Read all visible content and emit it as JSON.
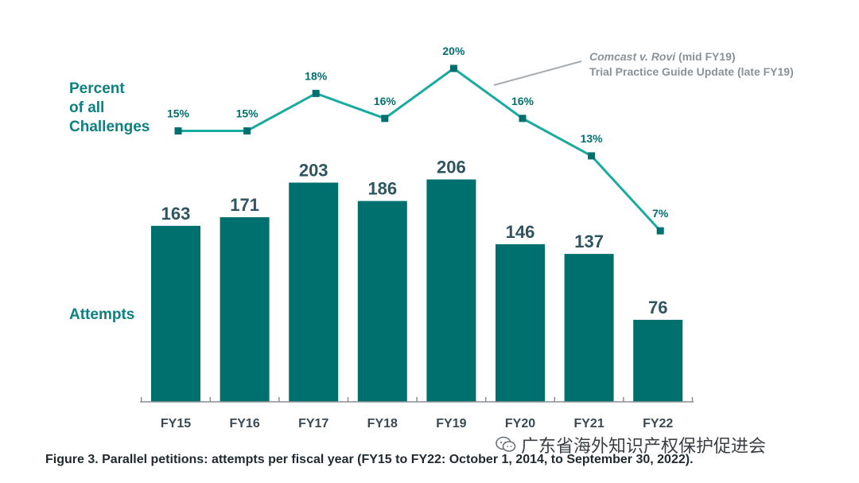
{
  "chart_data": {
    "type": "bar+line",
    "categories": [
      "FY15",
      "FY16",
      "FY17",
      "FY18",
      "FY19",
      "FY20",
      "FY21",
      "FY22"
    ],
    "series": [
      {
        "name": "Attempts",
        "type": "bar",
        "values": [
          163,
          171,
          203,
          186,
          206,
          146,
          137,
          76
        ]
      },
      {
        "name": "Percent of all Challenges",
        "type": "line",
        "values": [
          15,
          15,
          18,
          16,
          20,
          16,
          13,
          7
        ],
        "value_labels": [
          "15%",
          "15%",
          "18%",
          "16%",
          "20%",
          "16%",
          "13%",
          "7%"
        ]
      }
    ],
    "series_labels": {
      "percent_lines": [
        "Percent",
        "of all",
        "Challenges"
      ],
      "attempts": "Attempts"
    },
    "annotation": {
      "line1_italic": "Comcast v. Rovi",
      "line1_rest": " (mid FY19)",
      "line2": "Trial Practice Guide Update (late FY19)"
    },
    "caption": "Figure 3. Parallel petitions: attempts per fiscal year (FY15 to FY22: October 1, 2014, to September 30, 2022).",
    "colors": {
      "bar": "#00706f",
      "line": "#19aaa0",
      "marker": "#00706f",
      "label": "#0e8080"
    }
  },
  "watermark": {
    "icon": "wechat-icon",
    "text": "广东省海外知识产权保护促进会"
  }
}
